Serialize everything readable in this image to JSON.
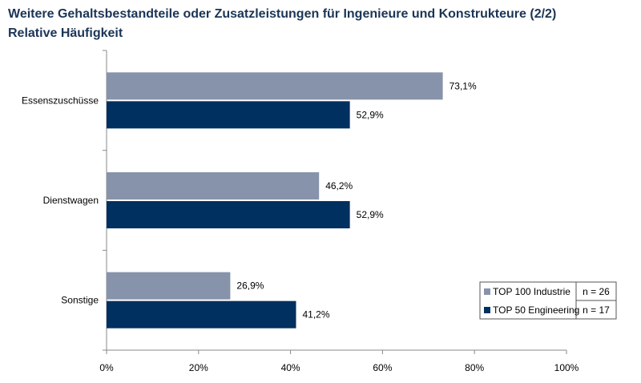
{
  "chart_data": {
    "type": "bar",
    "orientation": "horizontal",
    "title": "Weitere Gehaltsbestandteile oder Zusatzleistungen für Ingenieure und Konstrukteure (2/2)",
    "subtitle": "Relative Häufigkeit",
    "categories": [
      "Essenszuschüsse",
      "Dienstwagen",
      "Sonstige"
    ],
    "series": [
      {
        "name": "TOP 100 Industrie",
        "n_label": "n = 26",
        "color": "#8793aa",
        "values": [
          73.1,
          46.2,
          26.9
        ],
        "labels": [
          "73,1%",
          "46,2%",
          "26,9%"
        ]
      },
      {
        "name": "TOP 50 Engineering",
        "n_label": "n = 17",
        "color": "#00305f",
        "values": [
          52.9,
          52.9,
          41.2
        ],
        "labels": [
          "52,9%",
          "52,9%",
          "41,2%"
        ]
      }
    ],
    "xlim": [
      0,
      100
    ],
    "xticks": [
      "0%",
      "20%",
      "40%",
      "60%",
      "80%",
      "100%"
    ],
    "grid": false,
    "legend": "bottom-right"
  }
}
